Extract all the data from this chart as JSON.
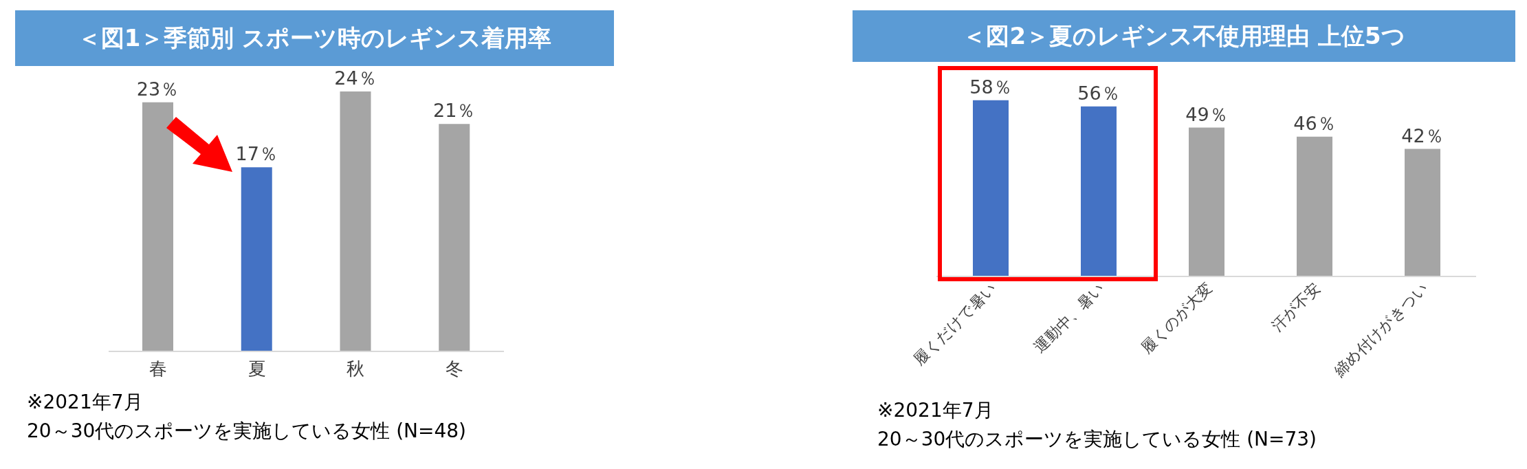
{
  "chart_data": [
    {
      "type": "bar",
      "title": "＜図1＞季節別 スポーツ時のレギンス着用率",
      "categories": [
        "春",
        "夏",
        "秋",
        "冬"
      ],
      "values": [
        23,
        17,
        24,
        21
      ],
      "colors": [
        "#a5a5a5",
        "#4472c4",
        "#a5a5a5",
        "#a5a5a5"
      ],
      "value_labels": [
        "23％",
        "17％",
        "24％",
        "21％"
      ],
      "tick_labels": "x",
      "annotations": [
        "※2021年7月",
        "20～30代のスポーツを実施している女性 (N=48)"
      ]
    },
    {
      "type": "bar",
      "title": "＜図2＞夏のレギンス不使用理由 上位5つ",
      "categories": [
        "履くだけで暑い",
        "運動中、暑い",
        "履くのが大変",
        "汗が不安",
        "締め付けがきつい"
      ],
      "values": [
        58,
        56,
        49,
        46,
        42
      ],
      "colors": [
        "#4472c4",
        "#4472c4",
        "#a5a5a5",
        "#a5a5a5",
        "#a5a5a5"
      ],
      "value_labels": [
        "58％",
        "56％",
        "49％",
        "46％",
        "42％"
      ],
      "tick_labels": "x",
      "annotations": [
        "※2021年7月",
        "20～30代のスポーツを実施している女性 (N=73)"
      ]
    }
  ]
}
